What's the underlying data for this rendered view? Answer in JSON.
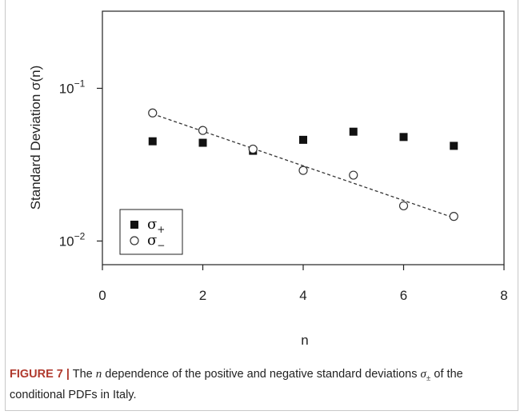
{
  "chart_data": {
    "type": "scatter",
    "xlabel": "n",
    "ylabel": "Standard Deviation σ(n)",
    "xlim": [
      0,
      8
    ],
    "ylim": [
      0.007,
      0.32
    ],
    "y_scale": "log",
    "x_ticks": [
      "0",
      "2",
      "4",
      "6",
      "8"
    ],
    "y_ticks": [
      {
        "value": 0.1,
        "base": "10",
        "exp": "−1"
      },
      {
        "value": 0.01,
        "base": "10",
        "exp": "−2"
      }
    ],
    "grid": false,
    "legend_position": "bottom-left",
    "series": [
      {
        "name": "σ+",
        "legend_base": "σ",
        "legend_sub": "+",
        "marker": "filled-square",
        "x": [
          1,
          2,
          3,
          4,
          5,
          6,
          7
        ],
        "y": [
          0.045,
          0.044,
          0.039,
          0.046,
          0.052,
          0.048,
          0.042
        ]
      },
      {
        "name": "σ−",
        "legend_base": "σ",
        "legend_sub": "−",
        "marker": "open-circle",
        "x": [
          1,
          2,
          3,
          4,
          5,
          6,
          7
        ],
        "y": [
          0.069,
          0.053,
          0.04,
          0.029,
          0.027,
          0.017,
          0.0145
        ]
      }
    ],
    "fit_line": {
      "style": "dashed",
      "x": [
        1,
        7
      ],
      "y": [
        0.068,
        0.0142
      ]
    }
  },
  "caption": {
    "label": "FIGURE 7 |",
    "part1": " The ",
    "var": "n",
    "part2": " dependence of the positive and negative standard deviations ",
    "sigma": "σ",
    "sigma_sub": "±",
    "part3": " of the conditional PDFs in Italy."
  }
}
